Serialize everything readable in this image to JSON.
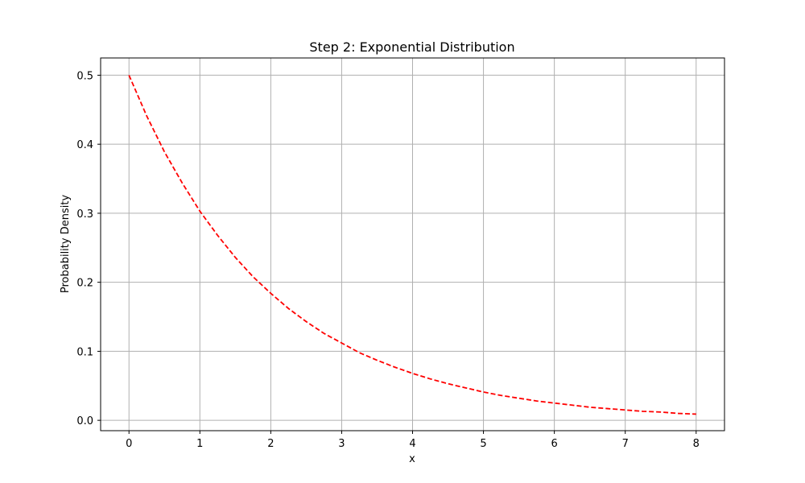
{
  "chart_data": {
    "type": "line",
    "title": "Step 2: Exponential Distribution",
    "xlabel": "x",
    "ylabel": "Probability Density",
    "xlim": [
      -0.4,
      8.4
    ],
    "ylim": [
      -0.015,
      0.525
    ],
    "xticks": [
      0,
      1,
      2,
      3,
      4,
      5,
      6,
      7,
      8
    ],
    "yticks": [
      0.0,
      0.1,
      0.2,
      0.3,
      0.4,
      0.5
    ],
    "ytick_labels": [
      "0.0",
      "0.1",
      "0.2",
      "0.3",
      "0.4",
      "0.5"
    ],
    "grid": true,
    "legend": false,
    "series": [
      {
        "color": "#ff0000",
        "line_style": "dashed",
        "x": [
          0,
          0.25,
          0.5,
          0.75,
          1,
          1.25,
          1.5,
          1.75,
          2,
          2.25,
          2.5,
          2.75,
          3,
          3.25,
          3.5,
          3.75,
          4,
          4.25,
          4.5,
          4.75,
          5,
          5.25,
          5.5,
          5.75,
          6,
          6.25,
          6.5,
          6.75,
          7,
          7.25,
          7.5,
          7.75,
          8
        ],
        "y": [
          0.5,
          0.441,
          0.389,
          0.344,
          0.303,
          0.268,
          0.236,
          0.208,
          0.184,
          0.162,
          0.143,
          0.126,
          0.112,
          0.098,
          0.087,
          0.077,
          0.068,
          0.06,
          0.053,
          0.047,
          0.041,
          0.036,
          0.032,
          0.028,
          0.025,
          0.022,
          0.019,
          0.017,
          0.015,
          0.013,
          0.012,
          0.01,
          0.009
        ]
      }
    ]
  }
}
